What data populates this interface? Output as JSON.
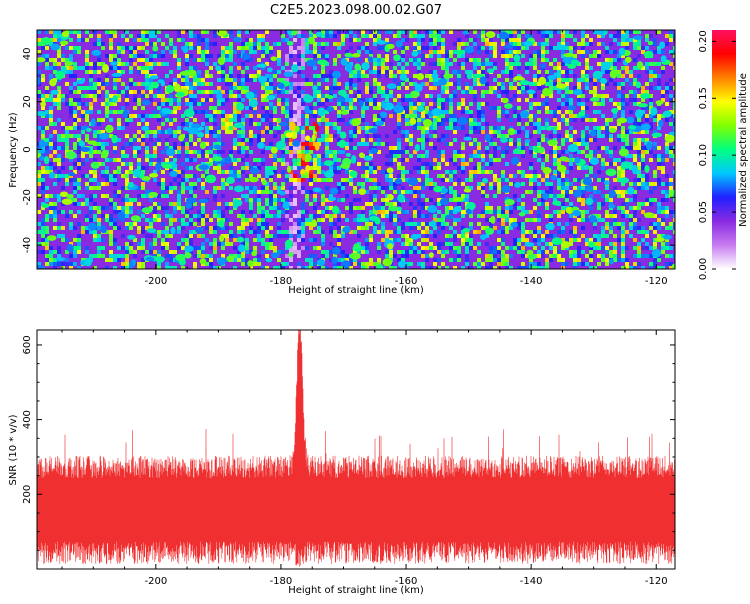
{
  "title": "C2E5.2023.098.00.02.G07",
  "colors": {
    "snr_line": "#f03030",
    "colormap": [
      "#ffffff",
      "#c87cf0",
      "#8a2be2",
      "#2020ff",
      "#00c8ff",
      "#00ff80",
      "#80ff00",
      "#ffff00",
      "#ff8000",
      "#ff0000",
      "#ff1060"
    ]
  },
  "chart_data": [
    {
      "type": "heatmap",
      "title": "",
      "xlabel": "Height of straight line (km)",
      "ylabel": "Frequency (Hz)",
      "xlim": [
        -219,
        -117
      ],
      "ylim": [
        -50,
        50
      ],
      "xticks": [
        -200,
        -180,
        -160,
        -140,
        -120
      ],
      "yticks": [
        -40,
        -20,
        0,
        20,
        40
      ],
      "colorbar": {
        "label": "Normalized spectral amplitude",
        "range": [
          0.0,
          0.21
        ],
        "ticks": [
          "0.00",
          "0.05",
          "0.10",
          "0.15",
          "0.20"
        ]
      },
      "features": [
        {
          "x": -178,
          "y_center": 0,
          "y_halfwidth": 50,
          "description_value": "low-amplitude vertical band"
        },
        {
          "x": -177,
          "y_center": 0,
          "y_halfwidth": 12,
          "peak": 0.19
        }
      ]
    },
    {
      "type": "line",
      "title": "",
      "xlabel": "Height of straight line (km)",
      "ylabel": "SNR (10 * v/v)",
      "xlim": [
        -219,
        -117
      ],
      "ylim": [
        0,
        640
      ],
      "xticks": [
        -200,
        -180,
        -160,
        -140,
        -120
      ],
      "yticks": [
        200,
        400,
        600
      ],
      "series": [
        {
          "name": "",
          "baseline": 150,
          "noise_amplitude": 170,
          "peak_x": -177,
          "peak_value": 640
        }
      ]
    }
  ]
}
